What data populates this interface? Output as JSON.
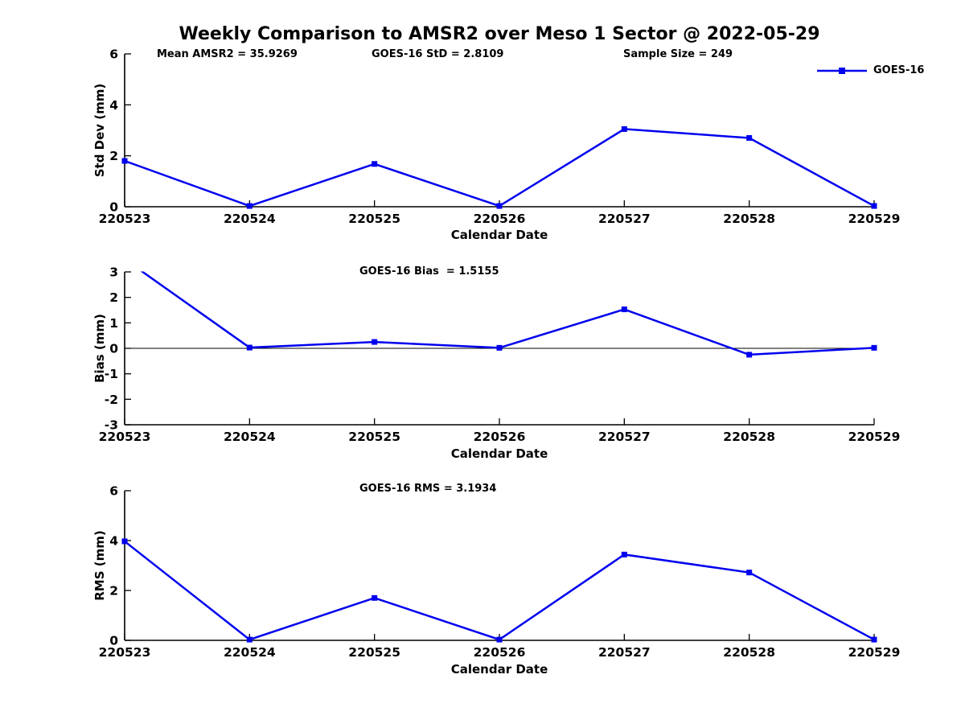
{
  "title": "Weekly Comparison to AMSR2 over Meso 1 Sector @ 2022-05-29",
  "legend": {
    "label": "GOES-16"
  },
  "colors": {
    "line": "#0000EE",
    "axis": "#000000",
    "text": "#000000",
    "background": "#FFFFFF"
  },
  "chart_data": [
    {
      "type": "line",
      "id": "std-dev",
      "categories": [
        "220523",
        "220524",
        "220525",
        "220526",
        "220527",
        "220528",
        "220529"
      ],
      "series": [
        {
          "name": "GOES-16",
          "values": [
            1.8,
            0.03,
            1.68,
            0.03,
            3.05,
            2.7,
            0.03
          ]
        }
      ],
      "xlabel": "Calendar Date",
      "ylabel": "Std Dev (mm)",
      "ylim": [
        0,
        6
      ],
      "yticks": [
        0,
        2,
        4,
        6
      ],
      "grid": false,
      "zero_line": false,
      "legend_position": "upper-right-outside",
      "annotations": [
        {
          "text": "Mean AMSR2 = 35.9269"
        },
        {
          "text": "GOES-16 StD = 2.8109"
        },
        {
          "text": "Sample Size = 249"
        }
      ]
    },
    {
      "type": "line",
      "id": "bias",
      "categories": [
        "220523",
        "220524",
        "220525",
        "220526",
        "220527",
        "220528",
        "220529"
      ],
      "series": [
        {
          "name": "GOES-16",
          "values": [
            3.5,
            0.03,
            0.25,
            0.02,
            1.53,
            -0.25,
            0.02
          ]
        }
      ],
      "xlabel": "Calendar Date",
      "ylabel": "Bias (mm)",
      "ylim": [
        -3,
        3
      ],
      "yticks": [
        -3,
        -2,
        -1,
        0,
        1,
        2,
        3
      ],
      "grid": false,
      "zero_line": true,
      "clipped_note": "first value exceeds y-axis top and is clipped at 3",
      "annotations": [
        {
          "text": "GOES-16 Bias  = 1.5155"
        }
      ]
    },
    {
      "type": "line",
      "id": "rms",
      "categories": [
        "220523",
        "220524",
        "220525",
        "220526",
        "220527",
        "220528",
        "220529"
      ],
      "series": [
        {
          "name": "GOES-16",
          "values": [
            3.97,
            0.03,
            1.7,
            0.03,
            3.44,
            2.72,
            0.03
          ]
        }
      ],
      "xlabel": "Calendar Date",
      "ylabel": "RMS (mm)",
      "ylim": [
        0,
        6
      ],
      "yticks": [
        0,
        2,
        4,
        6
      ],
      "grid": false,
      "zero_line": false,
      "annotations": [
        {
          "text": "GOES-16 RMS = 3.1934"
        }
      ]
    }
  ]
}
